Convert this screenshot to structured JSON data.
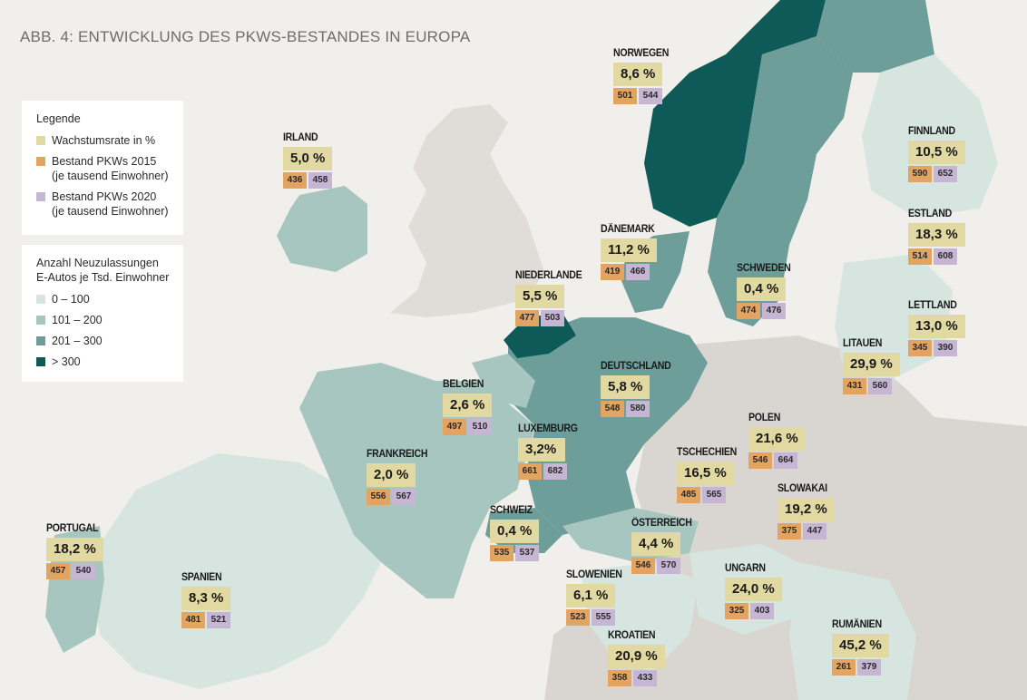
{
  "title": "ABB. 4: ENTWICKLUNG DES PKWS-BESTANDES IN EUROPA",
  "colors": {
    "background": "#f1efeb",
    "land_other": "#d9d6d2",
    "uk_land": "#e0ddd9",
    "class_0_100": "#d6e5e0",
    "class_101_200": "#a8c6c0",
    "class_201_300": "#6e9e99",
    "class_gt_300": "#0d5a58",
    "growth": "#e2d8a2",
    "stock_2015": "#e3a461",
    "stock_2020": "#c6b6d4"
  },
  "legend_main": {
    "heading": "Legende",
    "items": [
      {
        "label": "Wachstumsrate in %",
        "color": "#e2d8a2"
      },
      {
        "label": "Bestand PKWs 2015\n(je tausend Einwohner)",
        "color": "#e3a461"
      },
      {
        "label": "Bestand PKWs 2020\n(je tausend Einwohner)",
        "color": "#c6b6d4"
      }
    ]
  },
  "legend_ev": {
    "heading": "Anzahl Neuzulassungen\nE-Autos je Tsd. Einwohner",
    "items": [
      {
        "label": "0 – 100",
        "color": "#d6e5e0"
      },
      {
        "label": "101 – 200",
        "color": "#a8c6c0"
      },
      {
        "label": "201 – 300",
        "color": "#6e9e99"
      },
      {
        "label": "> 300",
        "color": "#0d5a58"
      }
    ]
  },
  "countries": [
    {
      "name": "NORWEGEN",
      "growth": "8,6 %",
      "stock2015": "501",
      "stock2020": "544",
      "ev_class": "> 300"
    },
    {
      "name": "IRLAND",
      "growth": "5,0 %",
      "stock2015": "436",
      "stock2020": "458",
      "ev_class": "101 – 200"
    },
    {
      "name": "FINNLAND",
      "growth": "10,5 %",
      "stock2015": "590",
      "stock2020": "652",
      "ev_class": "0 – 100"
    },
    {
      "name": "ESTLAND",
      "growth": "18,3 %",
      "stock2015": "514",
      "stock2020": "608",
      "ev_class": "0 – 100"
    },
    {
      "name": "DÄNEMARK",
      "growth": "11,2 %",
      "stock2015": "419",
      "stock2020": "466",
      "ev_class": "201 – 300"
    },
    {
      "name": "NIEDERLANDE",
      "growth": "5,5 %",
      "stock2015": "477",
      "stock2020": "503",
      "ev_class": "> 300"
    },
    {
      "name": "SCHWEDEN",
      "growth": "0,4 %",
      "stock2015": "474",
      "stock2020": "476",
      "ev_class": "201 – 300"
    },
    {
      "name": "LETTLAND",
      "growth": "13,0 %",
      "stock2015": "345",
      "stock2020": "390",
      "ev_class": "0 – 100"
    },
    {
      "name": "LITAUEN",
      "growth": "29,9 %",
      "stock2015": "431",
      "stock2020": "560",
      "ev_class": "0 – 100"
    },
    {
      "name": "BELGIEN",
      "growth": "2,6 %",
      "stock2015": "497",
      "stock2020": "510",
      "ev_class": "101 – 200"
    },
    {
      "name": "DEUTSCHLAND",
      "growth": "5,8 %",
      "stock2015": "548",
      "stock2020": "580",
      "ev_class": "201 – 300"
    },
    {
      "name": "LUXEMBURG",
      "growth": "3,2%",
      "stock2015": "661",
      "stock2020": "682",
      "ev_class": "201 – 300"
    },
    {
      "name": "POLEN",
      "growth": "21,6 %",
      "stock2015": "546",
      "stock2020": "664",
      "ev_class": ""
    },
    {
      "name": "FRANKREICH",
      "growth": "2,0 %",
      "stock2015": "556",
      "stock2020": "567",
      "ev_class": "101 – 200"
    },
    {
      "name": "TSCHECHIEN",
      "growth": "16,5 %",
      "stock2015": "485",
      "stock2020": "565",
      "ev_class": ""
    },
    {
      "name": "SLOWAKAI",
      "growth": "19,2 %",
      "stock2015": "375",
      "stock2020": "447",
      "ev_class": ""
    },
    {
      "name": "SCHWEIZ",
      "growth": "0,4 %",
      "stock2015": "535",
      "stock2020": "537",
      "ev_class": "201 – 300"
    },
    {
      "name": "ÖSTERREICH",
      "growth": "4,4 %",
      "stock2015": "546",
      "stock2020": "570",
      "ev_class": "101 – 200"
    },
    {
      "name": "PORTUGAL",
      "growth": "18,2 %",
      "stock2015": "457",
      "stock2020": "540",
      "ev_class": "101 – 200"
    },
    {
      "name": "SPANIEN",
      "growth": "8,3 %",
      "stock2015": "481",
      "stock2020": "521",
      "ev_class": "0 – 100"
    },
    {
      "name": "SLOWENIEN",
      "growth": "6,1 %",
      "stock2015": "523",
      "stock2020": "555",
      "ev_class": "0 – 100"
    },
    {
      "name": "UNGARN",
      "growth": "24,0 %",
      "stock2015": "325",
      "stock2020": "403",
      "ev_class": "0 – 100"
    },
    {
      "name": "RUMÄNIEN",
      "growth": "45,2 %",
      "stock2015": "261",
      "stock2020": "379",
      "ev_class": "0 – 100"
    },
    {
      "name": "KROATIEN",
      "growth": "20,9 %",
      "stock2015": "358",
      "stock2020": "433",
      "ev_class": "0 – 100"
    }
  ]
}
